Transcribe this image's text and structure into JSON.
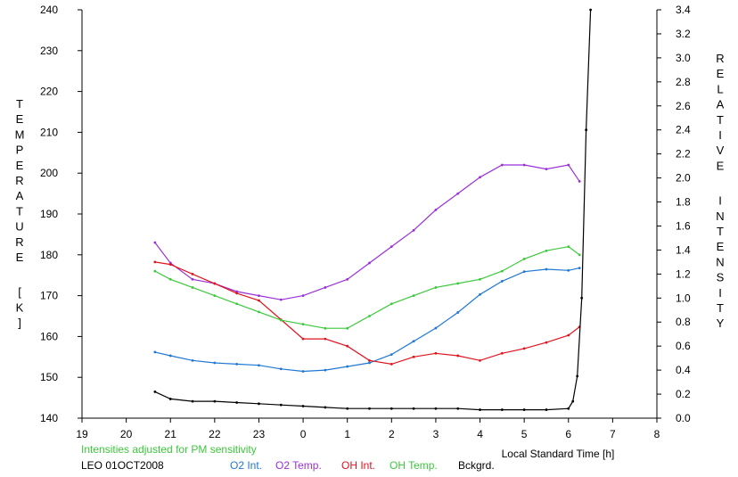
{
  "chart_data": {
    "type": "line",
    "title": "",
    "xlabel": "Local Standard Time [h]",
    "ylabel_left": "TEMPERATURE [K]",
    "ylabel_right": "RELATIVE INTENSITY",
    "xlim": [
      19,
      32
    ],
    "x_tick_labels": [
      "19",
      "20",
      "21",
      "22",
      "23",
      "0",
      "1",
      "2",
      "3",
      "4",
      "5",
      "6",
      "7",
      "8"
    ],
    "ylim_left": [
      140,
      240
    ],
    "ylim_right": [
      0,
      3.4
    ],
    "y_left_ticks": [
      140,
      150,
      160,
      170,
      180,
      190,
      200,
      210,
      220,
      230,
      240
    ],
    "y_right_ticks": [
      "0.0",
      "0.2",
      "0.4",
      "0.6",
      "0.8",
      "1.0",
      "1.2",
      "1.4",
      "1.6",
      "1.8",
      "2.0",
      "2.2",
      "2.4",
      "2.6",
      "2.8",
      "3.0",
      "3.2",
      "3.4"
    ],
    "grid": false,
    "series": [
      {
        "name": "O2 Int.",
        "axis": "right",
        "color": "#1f78d4",
        "x": [
          20.65,
          21.0,
          21.5,
          22.0,
          22.5,
          23.0,
          23.5,
          24.0,
          24.5,
          25.0,
          25.5,
          26.0,
          26.5,
          27.0,
          27.5,
          28.0,
          28.5,
          29.0,
          29.5,
          30.0,
          30.25
        ],
        "y": [
          0.55,
          0.52,
          0.48,
          0.46,
          0.45,
          0.44,
          0.41,
          0.39,
          0.4,
          0.43,
          0.46,
          0.53,
          0.64,
          0.75,
          0.88,
          1.03,
          1.14,
          1.22,
          1.24,
          1.23,
          1.25
        ]
      },
      {
        "name": "O2 Temp.",
        "axis": "left",
        "color": "#9b30d9",
        "x": [
          20.65,
          21.0,
          21.5,
          22.0,
          22.5,
          23.0,
          23.5,
          24.0,
          24.5,
          25.0,
          25.5,
          26.0,
          26.5,
          27.0,
          27.5,
          28.0,
          28.5,
          29.0,
          29.5,
          30.0,
          30.25
        ],
        "y": [
          183,
          178,
          174,
          173,
          171,
          170,
          169,
          170,
          172,
          174,
          178,
          182,
          186,
          191,
          195,
          199,
          202,
          202,
          201,
          202,
          198
        ]
      },
      {
        "name": "OH Int.",
        "axis": "right",
        "color": "#e0141e",
        "x": [
          20.65,
          21.0,
          21.5,
          22.0,
          22.5,
          23.0,
          23.5,
          24.0,
          24.5,
          25.0,
          25.5,
          26.0,
          26.5,
          27.0,
          27.5,
          28.0,
          28.5,
          29.0,
          29.5,
          30.0,
          30.25
        ],
        "y": [
          1.3,
          1.28,
          1.2,
          1.12,
          1.04,
          0.98,
          0.82,
          0.66,
          0.66,
          0.6,
          0.48,
          0.45,
          0.51,
          0.54,
          0.52,
          0.48,
          0.54,
          0.58,
          0.63,
          0.69,
          0.76
        ]
      },
      {
        "name": "OH Temp.",
        "axis": "left",
        "color": "#3cc83c",
        "x": [
          20.65,
          21.0,
          21.5,
          22.0,
          22.5,
          23.0,
          23.5,
          24.0,
          24.5,
          25.0,
          25.5,
          26.0,
          26.5,
          27.0,
          27.5,
          28.0,
          28.5,
          29.0,
          29.5,
          30.0,
          30.25
        ],
        "y": [
          176,
          174,
          172,
          170,
          168,
          166,
          164,
          163,
          162,
          162,
          165,
          168,
          170,
          172,
          173,
          174,
          176,
          179,
          181,
          182,
          180
        ]
      },
      {
        "name": "Bckgrd.",
        "axis": "right",
        "color": "#000000",
        "x": [
          20.65,
          21.0,
          21.5,
          22.0,
          22.5,
          23.0,
          23.5,
          24.0,
          24.5,
          25.0,
          25.5,
          26.0,
          26.5,
          27.0,
          27.5,
          28.0,
          28.5,
          29.0,
          29.5,
          30.0,
          30.1,
          30.2,
          30.3,
          30.4,
          30.5
        ],
        "y": [
          0.22,
          0.16,
          0.14,
          0.14,
          0.13,
          0.12,
          0.11,
          0.1,
          0.09,
          0.08,
          0.08,
          0.08,
          0.08,
          0.08,
          0.08,
          0.07,
          0.07,
          0.07,
          0.07,
          0.08,
          0.14,
          0.35,
          1.0,
          2.4,
          3.4
        ]
      }
    ]
  },
  "notes": {
    "adjusted": "Intensities adjusted for PM sensitivity",
    "station": "LEO 01OCT2008",
    "colors": {
      "adjusted": "#3cc83c"
    }
  }
}
